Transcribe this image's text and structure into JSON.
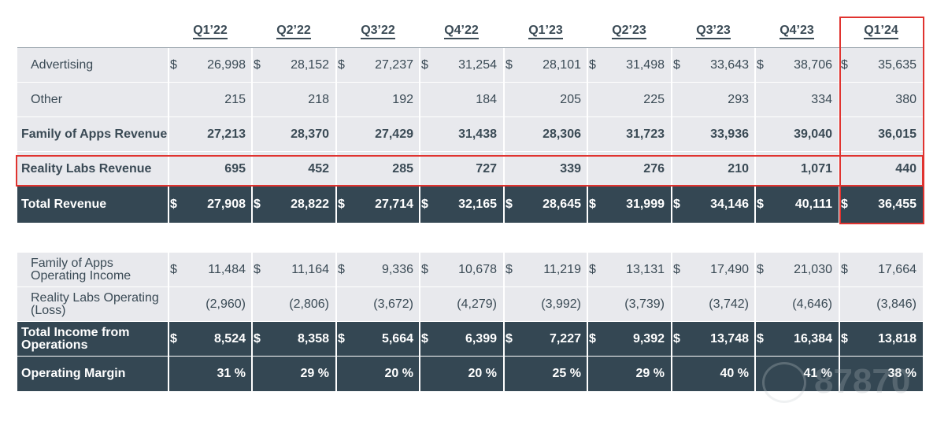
{
  "quarters": [
    "Q1’22",
    "Q2’22",
    "Q3’22",
    "Q4’22",
    "Q1’23",
    "Q2’23",
    "Q3’23",
    "Q4’23",
    "Q1’24"
  ],
  "revenue_table": {
    "rows": [
      {
        "label": "Advertising",
        "style": "indent",
        "dollar": true,
        "values": [
          "26,998",
          "28,152",
          "27,237",
          "31,254",
          "28,101",
          "31,498",
          "33,643",
          "38,706",
          "35,635"
        ]
      },
      {
        "label": "Other",
        "style": "indent",
        "dollar": false,
        "values": [
          "215",
          "218",
          "192",
          "184",
          "205",
          "225",
          "293",
          "334",
          "380"
        ]
      },
      {
        "label": "Family of Apps Revenue",
        "style": "bold",
        "dollar": false,
        "values": [
          "27,213",
          "28,370",
          "27,429",
          "31,438",
          "28,306",
          "31,723",
          "33,936",
          "39,040",
          "36,015"
        ]
      },
      {
        "label": "Reality Labs Revenue",
        "style": "bold",
        "dollar": false,
        "values": [
          "695",
          "452",
          "285",
          "727",
          "339",
          "276",
          "210",
          "1,071",
          "440"
        ]
      },
      {
        "label": "Total Revenue",
        "style": "dark",
        "dollar": true,
        "values": [
          "27,908",
          "28,822",
          "27,714",
          "32,165",
          "28,645",
          "31,999",
          "34,146",
          "40,111",
          "36,455"
        ]
      }
    ]
  },
  "income_table": {
    "rows": [
      {
        "label": "Family of Apps Operating Income",
        "style": "indent",
        "dollar": true,
        "values": [
          "11,484",
          "11,164",
          "9,336",
          "10,678",
          "11,219",
          "13,131",
          "17,490",
          "21,030",
          "17,664"
        ]
      },
      {
        "label": "Reality Labs Operating (Loss)",
        "style": "indent",
        "dollar": false,
        "values": [
          "(2,960)",
          "(2,806)",
          "(3,672)",
          "(4,279)",
          "(3,992)",
          "(3,739)",
          "(3,742)",
          "(4,646)",
          "(3,846)"
        ]
      },
      {
        "label": "Total Income from Operations",
        "style": "dark",
        "dollar": true,
        "values": [
          "8,524",
          "8,358",
          "5,664",
          "6,399",
          "7,227",
          "9,392",
          "13,748",
          "16,384",
          "13,818"
        ]
      },
      {
        "label": "Operating Margin",
        "style": "dark-plain",
        "dollar": false,
        "values": [
          "31 %",
          "29 %",
          "20 %",
          "20 %",
          "25 %",
          "29 %",
          "40 %",
          "41 %",
          "38 %"
        ]
      }
    ]
  },
  "currency_symbol": "$",
  "watermark": "87870",
  "colors": {
    "dark_row": "#344753",
    "light_row": "#e8e9ed",
    "highlight": "#e0332f",
    "text": "#3a4a55"
  }
}
